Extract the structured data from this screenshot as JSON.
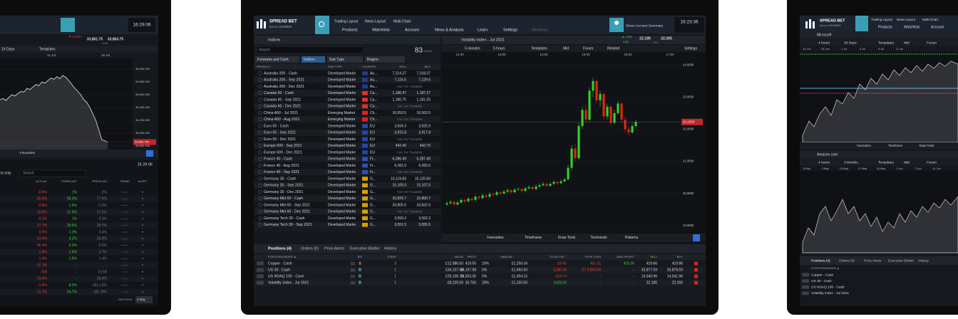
{
  "left": {
    "clock": "16:29:06",
    "change": "▼ 2.25%",
    "sell": "33,861.75",
    "buy": "33,863.75",
    "spread": "2.00",
    "range": "19 Days",
    "templates": "Templates",
    "dates": [
      "11 Jul",
      "18 Jul"
    ],
    "chart": {
      "type": "line",
      "ylim": [
        33744,
        35300
      ],
      "yticks": [
        {
          "value": 35000,
          "label": "35,000.000"
        },
        {
          "value": 34800,
          "label": "34,800.000"
        },
        {
          "value": 34600,
          "label": "34,600.000"
        },
        {
          "value": 34400,
          "label": "34,400.000"
        },
        {
          "value": 34200,
          "label": "34,200.000"
        },
        {
          "value": 34000,
          "label": "34,000.000"
        },
        {
          "value": 33800,
          "label": "33,800.000"
        }
      ],
      "current": {
        "value": 33860.75,
        "label": "33,860.750"
      },
      "values": [
        34520,
        34540,
        34510,
        34560,
        34600,
        34580,
        34620,
        34650,
        34640,
        34700,
        34680,
        34720,
        34760,
        34740,
        34800,
        34780,
        34820,
        34860,
        34840,
        34880,
        34850,
        34900,
        34870,
        34820,
        34760,
        34700,
        34650,
        34600,
        34520,
        34480,
        34400,
        34300,
        34200,
        34050,
        33900,
        33880,
        33860
      ]
    },
    "favourites": "Favourites",
    "filter": "ts only",
    "search": "Search",
    "clock2": "16 29 06",
    "columns": [
      "ACTUAL",
      "FORECAST",
      "PREVIOUS",
      "TREND",
      "ALERT"
    ],
    "rows": [
      [
        "-0.6%",
        "1%",
        "-2%"
      ],
      [
        "56.6%",
        "58.3%",
        "77.9%"
      ],
      [
        "0.6%",
        "1.5%",
        "-1.5%"
      ],
      [
        "20.6%",
        "21.0%",
        "27.5%"
      ],
      [
        "-0.1%",
        "1%",
        "0.3%"
      ],
      [
        "27.7%",
        "29.5%",
        "26.7%"
      ],
      [
        "0.5%",
        "1.0%",
        "3.4%"
      ],
      [
        "23.4%",
        "4.2%",
        "24.9%"
      ],
      [
        "45.4%",
        "0.3%",
        "0.5%"
      ],
      [
        "2.9%",
        "2.9%",
        "2.7%"
      ],
      [
        "1.4%",
        "1.6%",
        "1.4%"
      ],
      [
        "37.1%",
        "-",
        "-"
      ],
      [
        "25B",
        "-",
        "19.5B"
      ],
      [
        "23.4%",
        "-",
        "28.4%"
      ],
      [
        "-1.5%",
        "8.3%",
        "(R) 1.5%"
      ],
      [
        "21.1%",
        "24.7%",
        "(R) 79%"
      ]
    ],
    "alert_timer": "Alert timer",
    "alert_value": "1 Day"
  },
  "center": {
    "brand": "SPREAD BET",
    "account": "Demo 22009865",
    "tabs": [
      "Trading Layout",
      "News Layout",
      "Multi-Chart"
    ],
    "menu": [
      "Products",
      "Watchlists",
      "Account",
      "News & Analysis",
      "Learn",
      "Settings",
      "Windows"
    ],
    "account_summary": "Show Account Summary",
    "clock": "16:23:36",
    "ticker": {
      "change": "▲ 1.0%",
      "change_pts": "3.85",
      "sell": "22.185",
      "buy": "22.265",
      "spread": "8.0"
    },
    "watchlist": {
      "title": "Indices",
      "search": "Search",
      "count": "83",
      "total": "/10314",
      "filters": [
        "Forwards and Cash",
        "Indices",
        "Sub Type",
        "Region"
      ],
      "columns": [
        "PRODUCT",
        "SUB TYPE",
        "COUNTRY",
        "SELL",
        "BUY"
      ],
      "rows": [
        {
          "product": "Australia 200 - Cash",
          "sub_type": "Developed Marke",
          "country": "Au...",
          "sell": "7,214.37",
          "buy": "7,218.37"
        },
        {
          "product": "Australia 200 - Sep 2021",
          "sub_type": "Developed Marke",
          "country": "Au...",
          "sell": "7,124.5",
          "buy": "7,129.5"
        },
        {
          "product": "Australia 200 - Dec 2021",
          "sub_type": "Developed Marke",
          "country": "Au...",
          "status": "Not Yet Tradable"
        },
        {
          "product": "Canada 60 - Cash",
          "sub_type": "Developed Marke",
          "country": "Ca...",
          "sell": "1,186.47",
          "buy": "1,187.27"
        },
        {
          "product": "Canada 60 - Sep 2021",
          "sub_type": "Developed Marke",
          "country": "Ca...",
          "sell": "1,180.75",
          "buy": "1,181.55"
        },
        {
          "product": "Canada 60 - Dec 2021",
          "sub_type": "Developed Marke",
          "country": "Ca...",
          "status": "Not Yet Tradable"
        },
        {
          "product": "China A50 - Jul 2021",
          "sub_type": "Emerging Market",
          "country": "Ch...",
          "sell": "16,553.5",
          "buy": "16,563.5"
        },
        {
          "product": "China A50 - Aug 2021",
          "sub_type": "Emerging Market",
          "country": "Ch...",
          "status": "Not Yet Tradable"
        },
        {
          "product": "Euro 50 - Cash",
          "sub_type": "Developed Marke",
          "country": "EU",
          "sell": "3,924.3",
          "buy": "3,925.9"
        },
        {
          "product": "Euro 50 - Sep 2021",
          "sub_type": "Developed Marke",
          "country": "EU",
          "sell": "3,915.8",
          "buy": "3,917.8"
        },
        {
          "product": "Euro 50 - Dec 2021",
          "sub_type": "Developed Marke",
          "country": "EU",
          "status": "Not Yet Tradable"
        },
        {
          "product": "Europe 600 - Sep 2021",
          "sub_type": "Developed Marke",
          "country": "EU",
          "sell": "442.40",
          "buy": "442.70"
        },
        {
          "product": "Europe 600 - Dec 2021",
          "sub_type": "Developed Marke",
          "country": "EU",
          "status": "Not Yet Tradable"
        },
        {
          "product": "France 40 - Cash",
          "sub_type": "Developed Marke",
          "country": "Fr...",
          "sell": "6,286.49",
          "buy": "6,287.49"
        },
        {
          "product": "France 40 - Aug 2021",
          "sub_type": "Developed Marke",
          "country": "Fr...",
          "sell": "6,281.0",
          "buy": "6,283.0"
        },
        {
          "product": "France 40 - Sep 2021",
          "sub_type": "Developed Marke",
          "country": "Fr...",
          "status": "Not Yet Tradable"
        },
        {
          "product": "Germany 30 - Cash",
          "sub_type": "Developed Marke",
          "country": "G...",
          "sell": "15,119.83",
          "buy": "15,120.83"
        },
        {
          "product": "Germany 30 - Sep 2021",
          "sub_type": "Developed Marke",
          "country": "G...",
          "sell": "15,105.0",
          "buy": "15,107.0"
        },
        {
          "product": "Germany 30 - Dec 2021",
          "sub_type": "Developed Marke",
          "country": "G...",
          "status": "Not Yet Tradable"
        },
        {
          "product": "Germany Mid 60 - Cash",
          "sub_type": "Developed Marke",
          "country": "G...",
          "sell": "33,829.7",
          "buy": "33,850.7"
        },
        {
          "product": "Germany Mid 60 - Sep 2021",
          "sub_type": "Developed Marke",
          "country": "G...",
          "sell": "33,805.0",
          "buy": "33,832.0"
        },
        {
          "product": "Germany Mid 60 - Dec 2021",
          "sub_type": "Developed Marke",
          "country": "G...",
          "status": "Not Yet Tradable"
        },
        {
          "product": "Germany Tech 30 - Cash",
          "sub_type": "Developed Marke",
          "country": "G...",
          "sell": "3,559.3",
          "buy": "3,562.3"
        },
        {
          "product": "Germany Tech 30 - Sep 2021",
          "sub_type": "Developed Marke",
          "country": "G...",
          "sell": "3,551.5",
          "buy": "3,555.5"
        }
      ]
    },
    "chart": {
      "type": "candlestick",
      "title": "Volatility Index - Jul 2021",
      "interval": "5 minutes",
      "range": "5 hours",
      "tools": [
        "Templates",
        "Mid",
        "Forum",
        "Related",
        "Settings"
      ],
      "times": [
        "12:00",
        "13:00",
        "14:00",
        "15:00",
        "16:00",
        "17:00"
      ],
      "ylim": [
        18.82,
        24.36
      ],
      "yticks": [
        {
          "value": 24,
          "label": "24.0000"
        },
        {
          "value": 23,
          "label": "23.0000"
        },
        {
          "value": 22,
          "label": "22.0000"
        },
        {
          "value": 21,
          "label": "21.0000"
        },
        {
          "value": 20,
          "label": "20.0000"
        },
        {
          "value": 19,
          "label": "19.0000"
        }
      ],
      "current": {
        "value": 22.225,
        "label": "22.2250"
      },
      "candles": [
        [
          19.66,
          19.76,
          19.6,
          19.7
        ],
        [
          19.7,
          19.8,
          19.64,
          19.74
        ],
        [
          19.74,
          19.78,
          19.6,
          19.66
        ],
        [
          19.66,
          19.78,
          19.62,
          19.72
        ],
        [
          19.72,
          19.86,
          19.68,
          19.8
        ],
        [
          19.8,
          19.84,
          19.7,
          19.76
        ],
        [
          19.76,
          19.9,
          19.72,
          19.84
        ],
        [
          19.84,
          19.88,
          19.74,
          19.8
        ],
        [
          19.8,
          19.96,
          19.76,
          19.9
        ],
        [
          19.9,
          19.94,
          19.8,
          19.86
        ],
        [
          19.86,
          20.0,
          19.82,
          19.94
        ],
        [
          19.94,
          19.98,
          19.84,
          19.9
        ],
        [
          19.9,
          20.04,
          19.86,
          19.98
        ],
        [
          19.98,
          20.02,
          19.9,
          19.96
        ],
        [
          19.96,
          20.1,
          19.92,
          20.04
        ],
        [
          20.04,
          20.08,
          19.94,
          20.0
        ],
        [
          20.0,
          20.12,
          19.96,
          20.06
        ],
        [
          20.06,
          20.16,
          20.02,
          20.1
        ],
        [
          20.1,
          20.14,
          19.98,
          20.04
        ],
        [
          20.04,
          20.18,
          20.0,
          20.12
        ],
        [
          20.12,
          20.2,
          20.08,
          20.14
        ],
        [
          20.14,
          20.18,
          20.02,
          20.08
        ],
        [
          20.08,
          20.22,
          20.04,
          20.16
        ],
        [
          20.16,
          20.26,
          20.12,
          20.2
        ],
        [
          20.2,
          20.24,
          20.08,
          20.14
        ],
        [
          20.14,
          20.28,
          20.1,
          20.22
        ],
        [
          20.22,
          20.32,
          20.18,
          20.26
        ],
        [
          20.26,
          20.36,
          20.22,
          20.3
        ],
        [
          20.3,
          20.34,
          20.18,
          20.24
        ],
        [
          20.24,
          20.36,
          20.2,
          20.3
        ],
        [
          20.3,
          20.42,
          20.26,
          20.36
        ],
        [
          20.36,
          20.4,
          20.26,
          20.32
        ],
        [
          20.32,
          20.44,
          20.28,
          20.38
        ],
        [
          20.38,
          20.5,
          20.34,
          20.44
        ],
        [
          20.44,
          20.9,
          20.4,
          20.8
        ],
        [
          20.8,
          21.5,
          20.7,
          21.4
        ],
        [
          21.4,
          21.55,
          21.0,
          21.1
        ],
        [
          21.1,
          22.2,
          21.05,
          22.1
        ],
        [
          22.1,
          22.7,
          22.0,
          22.6
        ],
        [
          22.6,
          22.75,
          22.2,
          22.3
        ],
        [
          22.3,
          23.3,
          22.25,
          23.2
        ],
        [
          23.2,
          23.6,
          23.0,
          23.5
        ],
        [
          23.5,
          23.55,
          22.8,
          22.9
        ],
        [
          22.9,
          23.2,
          22.7,
          23.1
        ],
        [
          23.1,
          23.15,
          22.3,
          22.4
        ],
        [
          22.4,
          22.8,
          22.3,
          22.7
        ],
        [
          22.7,
          22.75,
          22.1,
          22.2
        ],
        [
          22.2,
          22.6,
          22.15,
          22.5
        ],
        [
          22.5,
          22.9,
          22.45,
          22.8
        ],
        [
          22.8,
          22.85,
          22.2,
          22.3
        ],
        [
          22.3,
          22.4,
          21.9,
          22.0
        ],
        [
          22.0,
          22.1,
          21.8,
          21.9
        ],
        [
          21.9,
          22.2,
          21.85,
          22.1
        ],
        [
          22.1,
          22.3,
          22.05,
          22.225
        ]
      ],
      "toolbar": [
        "Favourites",
        "Timeframe",
        "Draw Tools",
        "Technicals",
        "Patterns"
      ]
    },
    "positions": {
      "tabs": [
        "Positions (4)",
        "Orders (0)",
        "Price Alerts",
        "Execution Blotter",
        "History"
      ],
      "columns": [
        "POSITION/ORDER ▲",
        "B/S",
        "STAKE",
        "VALUE",
        "PRICE",
        "MARGIN ↑",
        "TOTAL P&L ↑",
        "STOP LOSS",
        "TAKE PROFIT",
        "SELL",
        "BUY"
      ],
      "rows": [
        {
          "name": "Copper - Cash",
          "qty": "[1]",
          "side": "S",
          "stake": "3",
          "value": "£12,586.50",
          "price": "419.55",
          "margin_pct": "10%",
          "margin": "£1,259.34",
          "pnl": "-£9.90",
          "stop": "451.51",
          "take": "415.35",
          "sell": "419.66",
          "buy": "419.86"
        },
        {
          "name": "US 30 - Cash",
          "qty": "[1]",
          "side": "B",
          "stake": "1",
          "value": "£34,157.98",
          "price": "34,157.98",
          "margin_pct": "5%",
          "margin": "£1,693.93",
          "pnl": "-£280.39",
          "stop": "(T) 3,863.66",
          "take": "-",
          "sell": "33,877.59",
          "buy": "33,879.59"
        },
        {
          "name": "US NDAQ 100 - Cash",
          "qty": "[1]",
          "side": "B",
          "stake": "1",
          "value": "£29,106.70",
          "price": "14,553.35",
          "margin_pct": "5%",
          "margin": "£1,454.15",
          "pnl": "-£24.74",
          "stop": "-",
          "take": "-",
          "sell": "14,540.96",
          "buy": "14,541.96"
        },
        {
          "name": "Volatility Index - Jul 2021",
          "qty": "[1]",
          "side": "B",
          "stake": "1",
          "value": "£8,229.50",
          "price": "20.765",
          "margin_pct": "20%",
          "margin": "£1,333.50",
          "pnl": "£426.00",
          "stop": "-",
          "take": "-",
          "sell": "22.185",
          "buy": "22.265"
        }
      ]
    }
  },
  "right": {
    "brand": "SPREAD BET",
    "account": "Demo 22009865",
    "tabs": [
      "Trading Layout",
      "News Layout",
      "Multi-Chart"
    ],
    "menu": [
      "Products",
      "Watchlists",
      "Account"
    ],
    "chart1": {
      "title": "Microsoft",
      "interval": "4 hours",
      "range": "26 Days",
      "tools": [
        "Templates",
        "Mid",
        "Forum"
      ],
      "dates": [
        "26 Jun",
        "28 Jun",
        "1 Jul",
        "6 Jul",
        "8 Jul",
        "12 Jul"
      ]
    },
    "toolbar": [
      "Favourites",
      "Timeframe",
      "Draw Tools"
    ],
    "chart2": {
      "title": "Amazon.com",
      "interval": "4 hours",
      "range": "3 Months",
      "tools": [
        "Templates",
        "Mid",
        "Forum"
      ],
      "dates": [
        "26 Apr",
        "3 May",
        "10 May",
        "17 May",
        "24 May",
        "1 Jun",
        "7 Jun",
        "14 Jun"
      ]
    },
    "positions": {
      "tabs": [
        "Positions (4)",
        "Orders (0)",
        "Price Alerts",
        "Execution Blotter",
        "History"
      ],
      "column": "POSITION/ORDER ▲",
      "rows": [
        "Copper - Cash",
        "US 30 - Cash",
        "US NDAQ 100 - Cash",
        "Volatility Index - Jul 2021"
      ]
    }
  }
}
